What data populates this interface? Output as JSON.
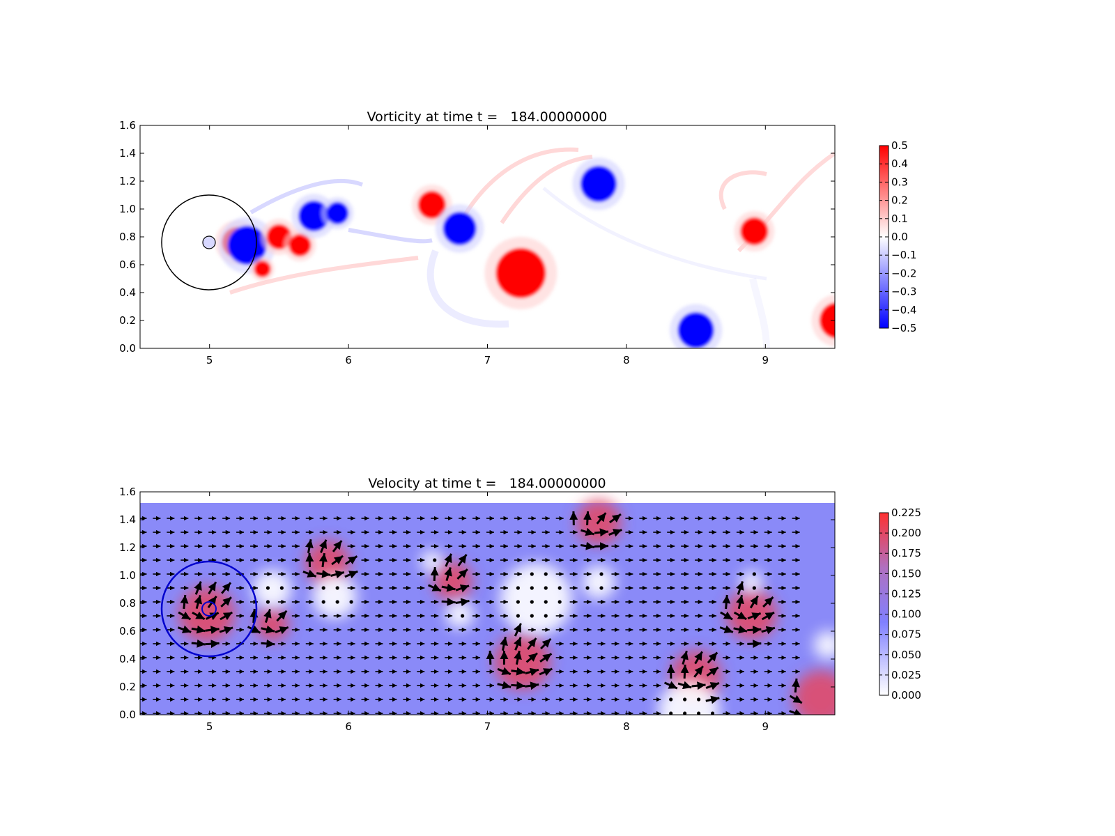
{
  "chart_data": [
    {
      "type": "heatmap",
      "title": "Vorticity at time t =   184.00000000",
      "xlim": [
        4.5,
        9.5
      ],
      "ylim": [
        0.0,
        1.6
      ],
      "xticks": [
        "5",
        "6",
        "7",
        "8",
        "9"
      ],
      "yticks": [
        "0.0",
        "0.2",
        "0.4",
        "0.6",
        "0.8",
        "1.0",
        "1.2",
        "1.4",
        "1.6"
      ],
      "colorbar": {
        "min": -0.5,
        "max": 0.5,
        "ticks": [
          "0.5",
          "0.4",
          "0.3",
          "0.2",
          "0.1",
          "0.0",
          "−0.1",
          "−0.2",
          "−0.3",
          "−0.4",
          "−0.5"
        ],
        "colors": [
          "#0000ff",
          "#ffffff",
          "#ff0000"
        ]
      },
      "vortices": [
        {
          "x": 5.2,
          "y": 0.76,
          "r": 0.11,
          "sign": 1
        },
        {
          "x": 5.27,
          "y": 0.74,
          "r": 0.14,
          "sign": -1
        },
        {
          "x": 5.5,
          "y": 0.8,
          "r": 0.09,
          "sign": 1
        },
        {
          "x": 5.38,
          "y": 0.57,
          "r": 0.06,
          "sign": 1
        },
        {
          "x": 5.65,
          "y": 0.74,
          "r": 0.08,
          "sign": 1
        },
        {
          "x": 5.75,
          "y": 0.95,
          "r": 0.11,
          "sign": -1
        },
        {
          "x": 5.92,
          "y": 0.97,
          "r": 0.08,
          "sign": -1
        },
        {
          "x": 6.6,
          "y": 1.03,
          "r": 0.1,
          "sign": 1
        },
        {
          "x": 6.8,
          "y": 0.86,
          "r": 0.12,
          "sign": -1
        },
        {
          "x": 7.24,
          "y": 0.54,
          "r": 0.18,
          "sign": 1
        },
        {
          "x": 7.8,
          "y": 1.18,
          "r": 0.13,
          "sign": -1
        },
        {
          "x": 8.92,
          "y": 0.84,
          "r": 0.1,
          "sign": 1
        },
        {
          "x": 8.5,
          "y": 0.13,
          "r": 0.13,
          "sign": -1
        },
        {
          "x": 9.52,
          "y": 0.2,
          "r": 0.13,
          "sign": 1
        }
      ],
      "annotations": {
        "circle_center": [
          5.0,
          0.76
        ],
        "outer_radius": 0.35,
        "inner_radius": 0.05
      }
    },
    {
      "type": "heatmap",
      "subtype": "quiver",
      "title": "Velocity at time t =   184.00000000",
      "xlim": [
        4.5,
        9.5
      ],
      "ylim": [
        0.0,
        1.6
      ],
      "xticks": [
        "5",
        "6",
        "7",
        "8",
        "9"
      ],
      "yticks": [
        "0.0",
        "0.2",
        "0.4",
        "0.6",
        "0.8",
        "1.0",
        "1.2",
        "1.4",
        "1.6"
      ],
      "colorbar": {
        "min": 0.0,
        "max": 0.225,
        "ticks": [
          "0.225",
          "0.200",
          "0.175",
          "0.150",
          "0.125",
          "0.100",
          "0.075",
          "0.050",
          "0.025",
          "0.000"
        ],
        "colors": [
          "#ffffff",
          "#8080ff",
          "#ff3030"
        ]
      },
      "high_speed_regions": [
        {
          "x": 4.98,
          "y": 0.72,
          "r": 0.2
        },
        {
          "x": 5.45,
          "y": 0.65,
          "r": 0.12
        },
        {
          "x": 5.85,
          "y": 1.09,
          "r": 0.16
        },
        {
          "x": 6.75,
          "y": 0.96,
          "r": 0.14
        },
        {
          "x": 7.25,
          "y": 0.38,
          "r": 0.2
        },
        {
          "x": 7.8,
          "y": 1.38,
          "r": 0.16
        },
        {
          "x": 8.9,
          "y": 0.72,
          "r": 0.18
        },
        {
          "x": 8.5,
          "y": 0.28,
          "r": 0.18
        },
        {
          "x": 9.4,
          "y": 0.12,
          "r": 0.2
        }
      ],
      "stagnation_regions": [
        {
          "x": 5.45,
          "y": 0.9,
          "r": 0.14
        },
        {
          "x": 5.9,
          "y": 0.85,
          "r": 0.16
        },
        {
          "x": 6.6,
          "y": 1.1,
          "r": 0.08
        },
        {
          "x": 6.8,
          "y": 0.72,
          "r": 0.1
        },
        {
          "x": 7.35,
          "y": 0.83,
          "r": 0.26
        },
        {
          "x": 7.8,
          "y": 0.95,
          "r": 0.12
        },
        {
          "x": 8.9,
          "y": 0.95,
          "r": 0.08
        },
        {
          "x": 8.45,
          "y": 0.03,
          "r": 0.22
        },
        {
          "x": 9.45,
          "y": 0.5,
          "r": 0.1
        }
      ],
      "domain_top": 1.52,
      "annotations": {
        "circle_center": [
          5.0,
          0.76
        ],
        "outer_radius": 0.35,
        "inner_radius": 0.05
      }
    }
  ]
}
